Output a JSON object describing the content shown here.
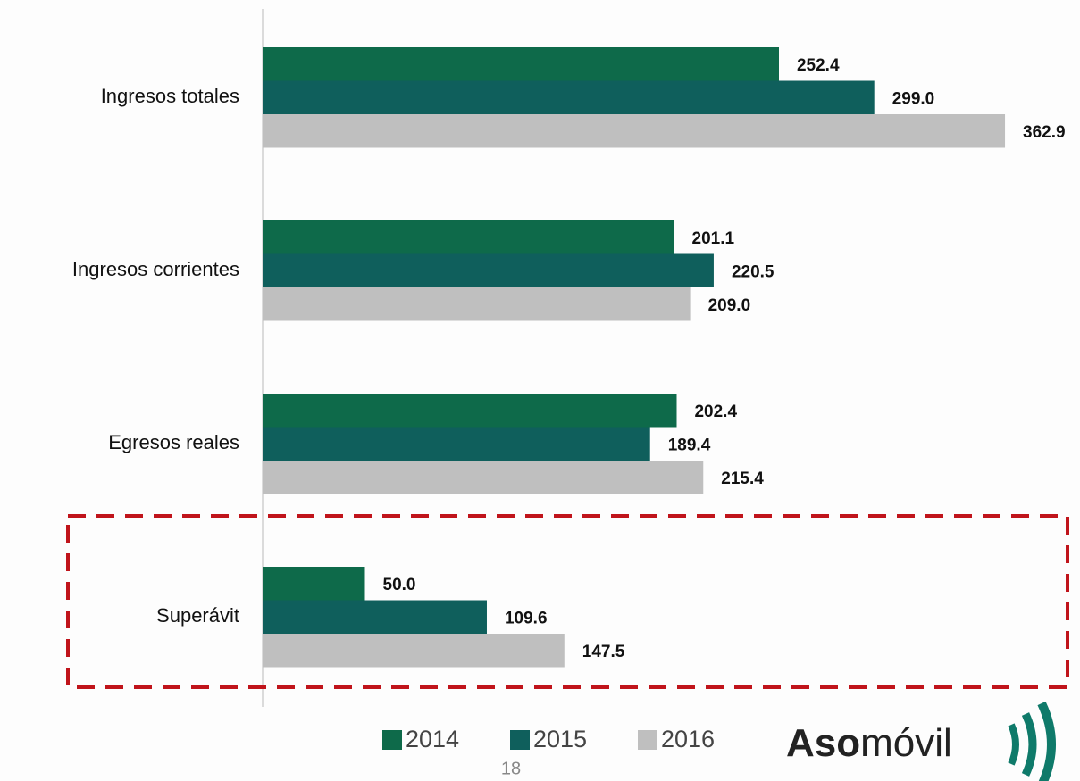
{
  "chart_data": {
    "type": "barh",
    "categories": [
      "Ingresos totales",
      "Ingresos corrientes",
      "Egresos reales",
      "Superávit"
    ],
    "series": [
      {
        "name": "2014",
        "color": "#0e6a4a",
        "values": [
          252.4,
          201.1,
          202.4,
          50.0
        ],
        "value_labels": [
          "252.4",
          "201.1",
          "202.4",
          "50.0"
        ]
      },
      {
        "name": "2015",
        "color": "#0f5f5c",
        "values": [
          299.0,
          220.5,
          189.4,
          109.6
        ],
        "value_labels": [
          "299.0",
          "220.5",
          "189.4",
          "109.6"
        ]
      },
      {
        "name": "2016",
        "color": "#bfbfbf",
        "values": [
          362.9,
          209.0,
          215.4,
          147.5
        ],
        "value_labels": [
          "362.9",
          "209.0",
          "215.4",
          "147.5"
        ]
      }
    ],
    "xlim": [
      0,
      400
    ],
    "legend": "bottom"
  },
  "page_number": "18",
  "logo": {
    "bold": "Aso",
    "light": "móvil"
  }
}
